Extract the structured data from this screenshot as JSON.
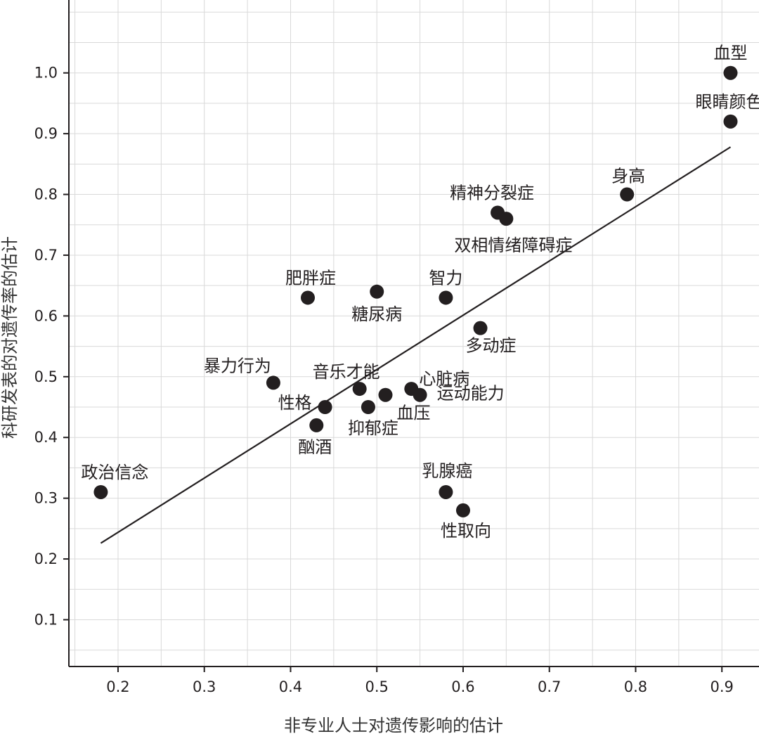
{
  "chart_data": {
    "type": "scatter",
    "xlabel": "非专业人士对遗传影响的估计",
    "ylabel": "科研发表的对遗传率的估计",
    "xlim": [
      0.143,
      0.943
    ],
    "ylim": [
      0.023,
      1.12
    ],
    "xticks": [
      "0.2",
      "0.3",
      "0.4",
      "0.5",
      "0.6",
      "0.7",
      "0.8",
      "0.9"
    ],
    "yticks": [
      "0.1",
      "0.2",
      "0.3",
      "0.4",
      "0.5",
      "0.6",
      "0.7",
      "0.8",
      "0.9",
      "1.0"
    ],
    "grid": true,
    "points": [
      {
        "label": "血型",
        "x": 0.91,
        "y": 1.0
      },
      {
        "label": "眼睛颜色",
        "x": 0.91,
        "y": 0.92
      },
      {
        "label": "身高",
        "x": 0.79,
        "y": 0.8
      },
      {
        "label": "精神分裂症",
        "x": 0.64,
        "y": 0.77
      },
      {
        "label": "双相情绪障碍症",
        "x": 0.65,
        "y": 0.76
      },
      {
        "label": "肥胖症",
        "x": 0.42,
        "y": 0.63
      },
      {
        "label": "糖尿病",
        "x": 0.5,
        "y": 0.64
      },
      {
        "label": "智力",
        "x": 0.58,
        "y": 0.63
      },
      {
        "label": "多动症",
        "x": 0.62,
        "y": 0.58
      },
      {
        "label": "暴力行为",
        "x": 0.38,
        "y": 0.49
      },
      {
        "label": "音乐才能",
        "x": 0.48,
        "y": 0.48
      },
      {
        "label": "心脏病",
        "x": 0.54,
        "y": 0.48
      },
      {
        "label": "运动能力",
        "x": 0.55,
        "y": 0.47
      },
      {
        "label": "血压",
        "x": 0.51,
        "y": 0.47
      },
      {
        "label": "性格",
        "x": 0.44,
        "y": 0.45
      },
      {
        "label": "抑郁症",
        "x": 0.49,
        "y": 0.45
      },
      {
        "label": "酗酒",
        "x": 0.43,
        "y": 0.42
      },
      {
        "label": "政治信念",
        "x": 0.18,
        "y": 0.31
      },
      {
        "label": "乳腺癌",
        "x": 0.58,
        "y": 0.31
      },
      {
        "label": "性取向",
        "x": 0.6,
        "y": 0.28
      }
    ],
    "trendline": {
      "x": [
        0.18,
        0.91
      ],
      "y": [
        0.226,
        0.878
      ]
    }
  }
}
